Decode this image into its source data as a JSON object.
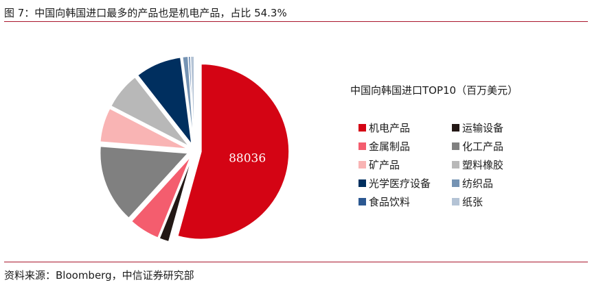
{
  "figure_title": "图 7：中国向韩国进口最多的产品也是机电产品，占比 54.3%",
  "source": "资料来源：Bloomberg，中信证券研究部",
  "chart_data": {
    "type": "pie",
    "title": "中国向韩国进口TOP10（百万美元）",
    "legend_placement": "right",
    "data_labels": [
      "88036"
    ],
    "slices": [
      {
        "name": "机电产品",
        "value": 88036,
        "color": "#d40414"
      },
      {
        "name": "运输设备",
        "value": 2900,
        "color": "#231815"
      },
      {
        "name": "金属制品",
        "value": 9200,
        "color": "#f45d6e"
      },
      {
        "name": "化工产品",
        "value": 23500,
        "color": "#808080"
      },
      {
        "name": "矿产品",
        "value": 10300,
        "color": "#f9b4b4"
      },
      {
        "name": "塑料橡胶",
        "value": 11100,
        "color": "#b8b8b8"
      },
      {
        "name": "光学医疗设备",
        "value": 13800,
        "color": "#002f5f"
      },
      {
        "name": "纺织品",
        "value": 1650,
        "color": "#7593b3"
      },
      {
        "name": "食品饮料",
        "value": 550,
        "color": "#2c5891"
      },
      {
        "name": "纸张",
        "value": 1100,
        "color": "#b4c3d5"
      }
    ]
  }
}
